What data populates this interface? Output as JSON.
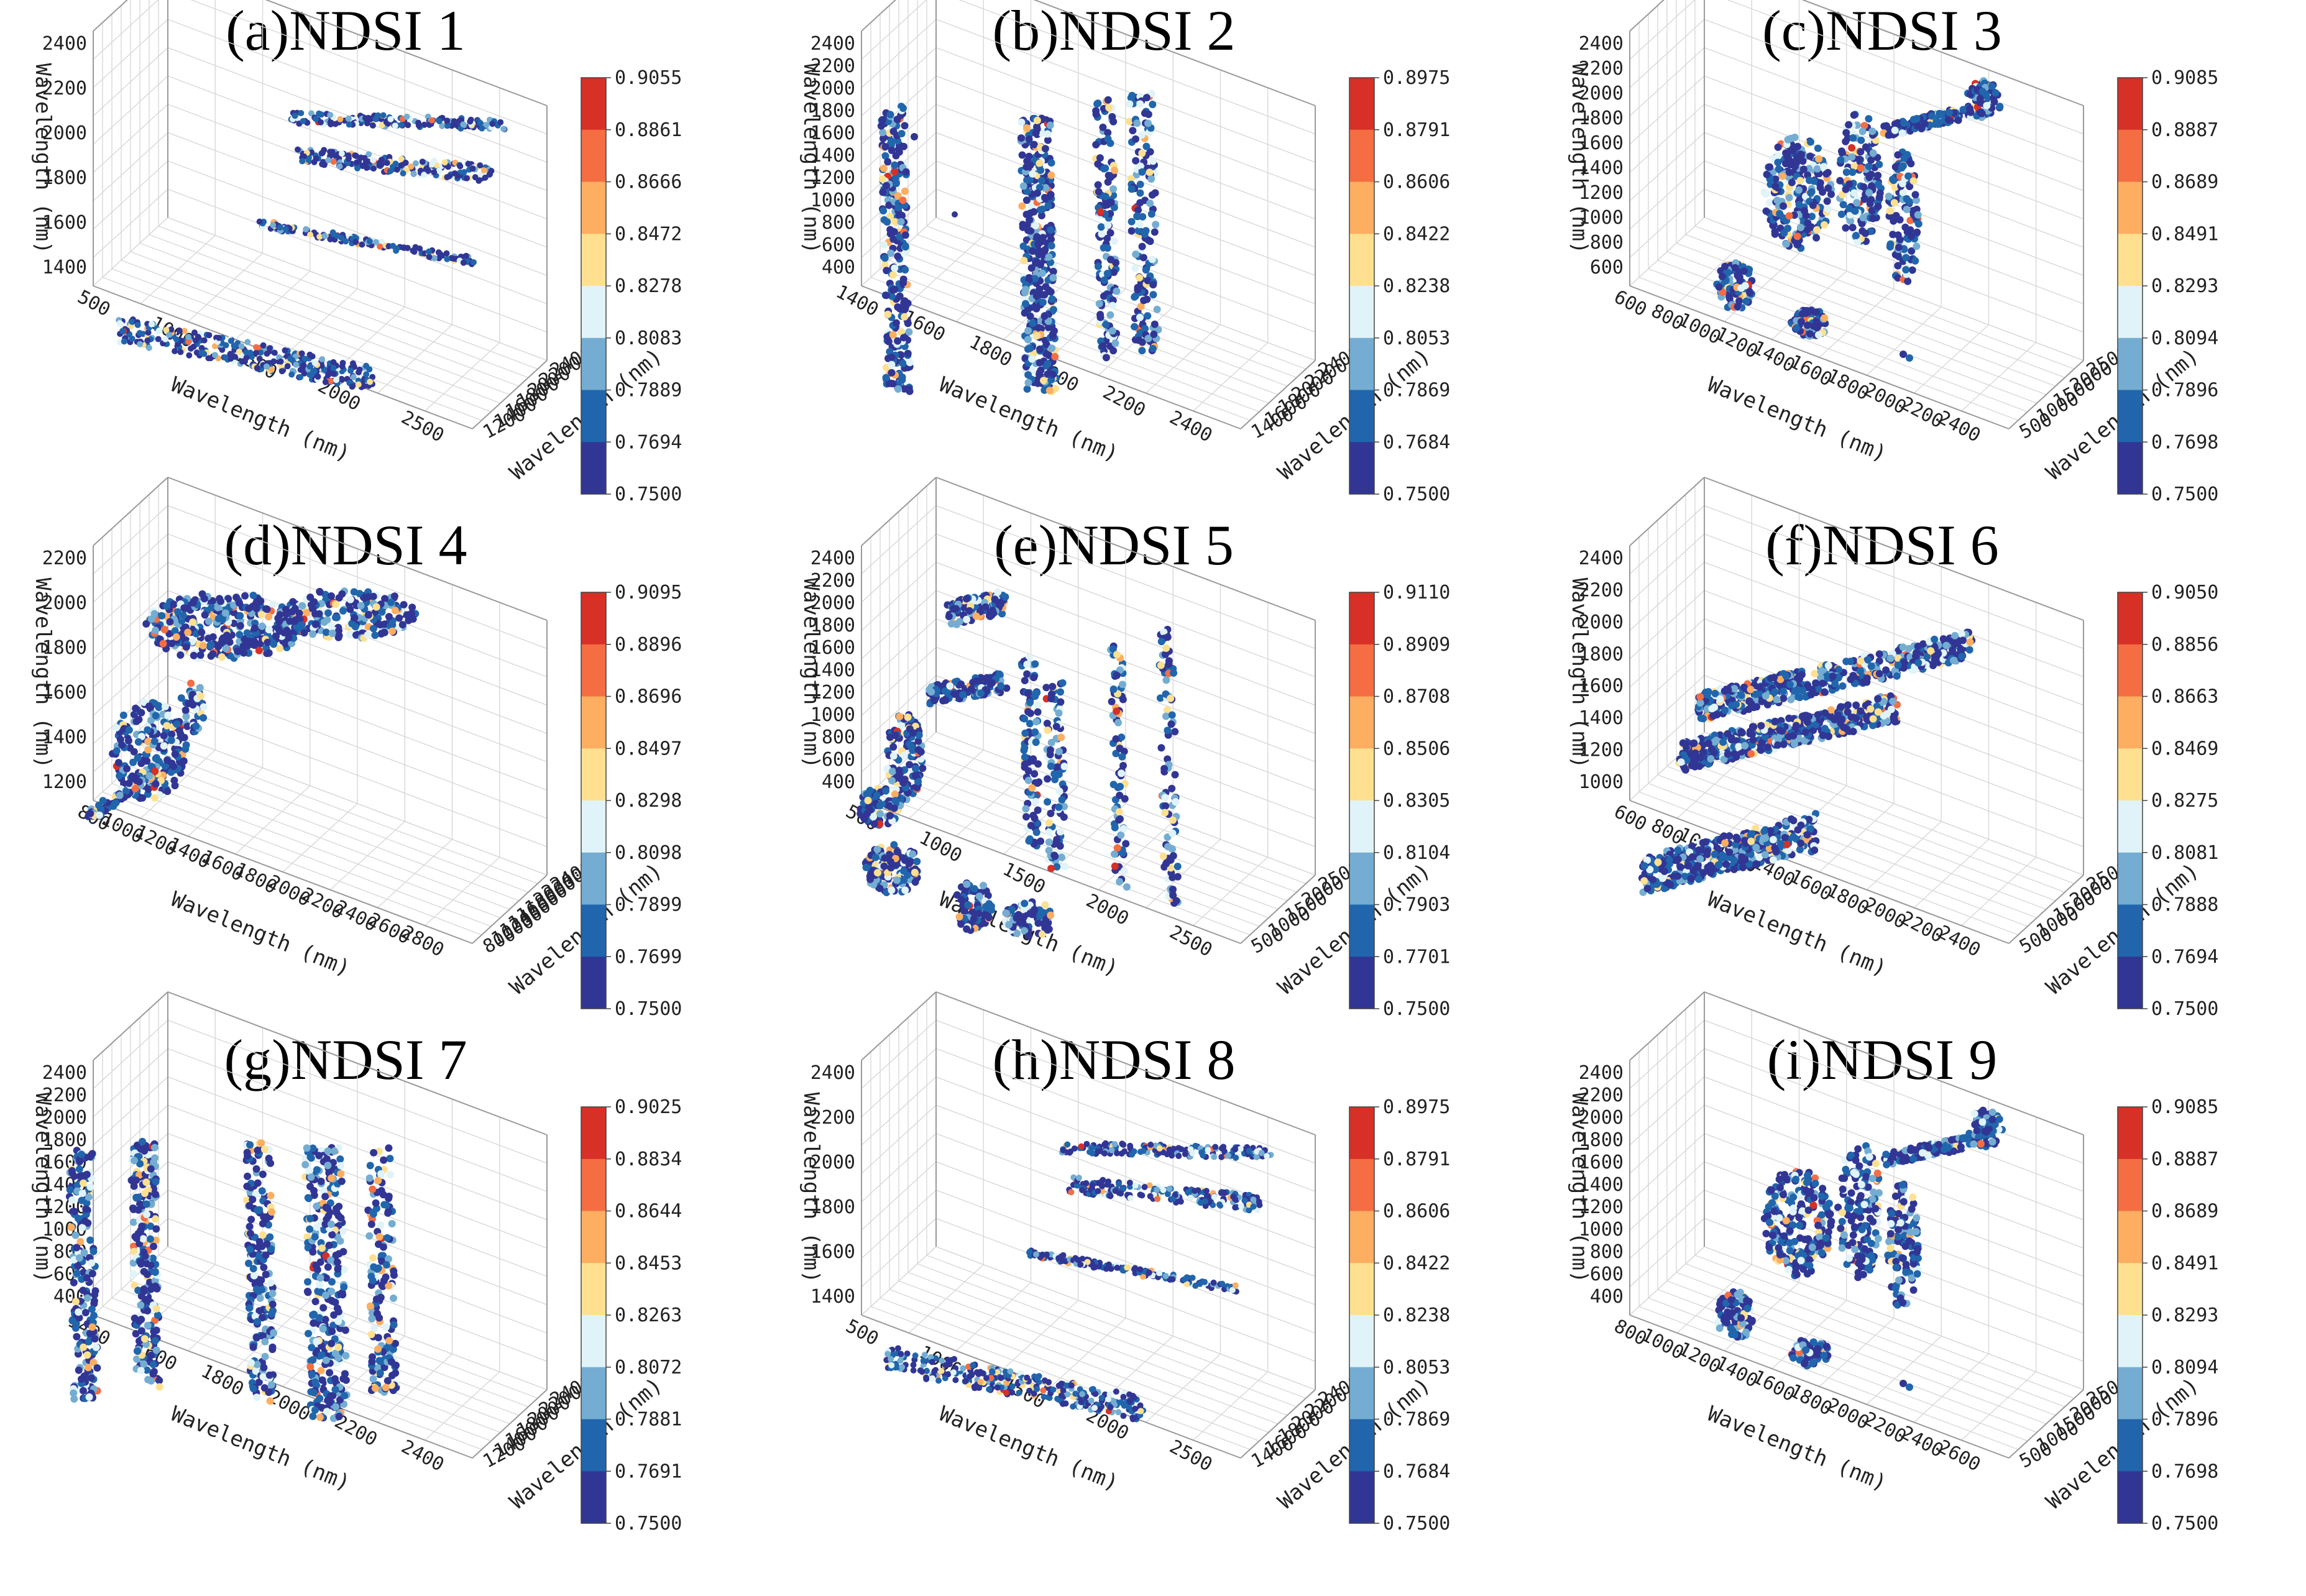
{
  "figure": {
    "colors": [
      "#313695",
      "#2166ac",
      "#74add1",
      "#e0f3f8",
      "#fee090",
      "#fdae61",
      "#f46d43",
      "#d73027",
      "#a50026"
    ]
  },
  "chart_data": [
    {
      "id": "a",
      "type": "scatter",
      "title": "(a)NDSI 1",
      "xlabel": "Wavelength (nm)",
      "ylabel": "Wavelength (nm)",
      "zlabel": "Wavelength (nm)",
      "x_ticks": [
        "500",
        "1000",
        "1500",
        "2000",
        "2500"
      ],
      "y_ticks": [
        "1200",
        "1400",
        "1600",
        "1800",
        "2000",
        "2200",
        "2400"
      ],
      "z_ticks": [
        "1400",
        "1600",
        "1800",
        "2000",
        "2200",
        "2400"
      ],
      "colorbar": [
        "0.9055",
        "0.8861",
        "0.8666",
        "0.8472",
        "0.8278",
        "0.8083",
        "0.7889",
        "0.7694",
        "0.7500"
      ],
      "pattern": "bands-a",
      "layers": [
        [
          2390,
          6
        ],
        [
          2220,
          8
        ],
        [
          1940,
          5
        ],
        [
          1400,
          10
        ]
      ],
      "points": []
    },
    {
      "id": "b",
      "type": "scatter",
      "title": "(b)NDSI 2",
      "xlabel": "Wavelength (nm)",
      "ylabel": "Wavelength (nm)",
      "zlabel": "Wavelength (nm)",
      "x_ticks": [
        "1400",
        "1600",
        "1800",
        "2000",
        "2200",
        "2400"
      ],
      "y_ticks": [
        "1400",
        "1600",
        "1800",
        "2000",
        "2200",
        "2400"
      ],
      "z_ticks": [
        "400",
        "600",
        "800",
        "1000",
        "1200",
        "1400",
        "1600",
        "1800",
        "2000",
        "2200",
        "2400"
      ],
      "colorbar": [
        "0.8975",
        "0.8791",
        "0.8606",
        "0.8422",
        "0.8238",
        "0.8053",
        "0.7869",
        "0.7684",
        "0.7500"
      ],
      "pattern": "columns-b",
      "points": []
    },
    {
      "id": "c",
      "type": "scatter",
      "title": "(c)NDSI 3",
      "xlabel": "Wavelength (nm)",
      "ylabel": "Wavelength (nm)",
      "zlabel": "Wavelength (nm)",
      "x_ticks": [
        "600",
        "800",
        "1000",
        "1200",
        "1400",
        "1600",
        "1800",
        "2000",
        "2200",
        "2400"
      ],
      "y_ticks": [
        "500",
        "1000",
        "1500",
        "2000",
        "2500"
      ],
      "z_ticks": [
        "600",
        "800",
        "1000",
        "1200",
        "1400",
        "1600",
        "1800",
        "2000",
        "2200",
        "2400"
      ],
      "colorbar": [
        "0.9085",
        "0.8887",
        "0.8689",
        "0.8491",
        "0.8293",
        "0.8094",
        "0.7896",
        "0.7698",
        "0.7500"
      ],
      "pattern": "clusters-c",
      "points": []
    },
    {
      "id": "d",
      "type": "scatter",
      "title": "(d)NDSI 4",
      "xlabel": "Wavelength (nm)",
      "ylabel": "Wavelength (nm)",
      "zlabel": "Wavelength (nm)",
      "x_ticks": [
        "800",
        "1000",
        "1200",
        "1400",
        "1600",
        "1800",
        "2000",
        "2200",
        "2400",
        "2600",
        "2800"
      ],
      "y_ticks": [
        "800",
        "1000",
        "1200",
        "1400",
        "1600",
        "1800",
        "2000",
        "2200",
        "2400"
      ],
      "z_ticks": [
        "1200",
        "1400",
        "1600",
        "1800",
        "2000",
        "2200"
      ],
      "colorbar": [
        "0.9095",
        "0.8896",
        "0.8696",
        "0.8497",
        "0.8298",
        "0.8098",
        "0.7899",
        "0.7699",
        "0.7500"
      ],
      "pattern": "diag-d",
      "points": []
    },
    {
      "id": "e",
      "type": "scatter",
      "title": "(e)NDSI 5",
      "xlabel": "Wavelength (nm)",
      "ylabel": "Wavelength (nm)",
      "zlabel": "Wavelength (nm)",
      "x_ticks": [
        "500",
        "1000",
        "1500",
        "2000",
        "2500"
      ],
      "y_ticks": [
        "500",
        "1000",
        "1500",
        "2000",
        "2500"
      ],
      "z_ticks": [
        "400",
        "600",
        "800",
        "1000",
        "1200",
        "1400",
        "1600",
        "1800",
        "2000",
        "2200",
        "2400"
      ],
      "colorbar": [
        "0.9110",
        "0.8909",
        "0.8708",
        "0.8506",
        "0.8305",
        "0.8104",
        "0.7903",
        "0.7701",
        "0.7500"
      ],
      "pattern": "scatter-e",
      "points": []
    },
    {
      "id": "f",
      "type": "scatter",
      "title": "(f)NDSI 6",
      "xlabel": "Wavelength (nm)",
      "ylabel": "Wavelength (nm)",
      "zlabel": "Wavelength (nm)",
      "x_ticks": [
        "600",
        "800",
        "1000",
        "1200",
        "1400",
        "1600",
        "1800",
        "2000",
        "2200",
        "2400"
      ],
      "y_ticks": [
        "500",
        "1000",
        "1500",
        "2000",
        "2500"
      ],
      "z_ticks": [
        "1000",
        "1200",
        "1400",
        "1600",
        "1800",
        "2000",
        "2200",
        "2400"
      ],
      "colorbar": [
        "0.9050",
        "0.8856",
        "0.8663",
        "0.8469",
        "0.8275",
        "0.8081",
        "0.7888",
        "0.7694",
        "0.7500"
      ],
      "pattern": "slabs-f",
      "points": []
    },
    {
      "id": "g",
      "type": "scatter",
      "title": "(g)NDSI 7",
      "xlabel": "Wavelength (nm)",
      "ylabel": "Wavelength (nm)",
      "zlabel": "Wavelength (nm)",
      "x_ticks": [
        "1400",
        "1600",
        "1800",
        "2000",
        "2200",
        "2400"
      ],
      "y_ticks": [
        "1200",
        "1400",
        "1600",
        "1800",
        "2000",
        "2200",
        "2400"
      ],
      "z_ticks": [
        "400",
        "600",
        "800",
        "1000",
        "1200",
        "1400",
        "1600",
        "1800",
        "2000",
        "2200",
        "2400"
      ],
      "colorbar": [
        "0.9025",
        "0.8834",
        "0.8644",
        "0.8453",
        "0.8263",
        "0.8072",
        "0.7881",
        "0.7691",
        "0.7500"
      ],
      "pattern": "columns-g",
      "points": []
    },
    {
      "id": "h",
      "type": "scatter",
      "title": "(h)NDSI 8",
      "xlabel": "Wavelength (nm)",
      "ylabel": "Wavelength (nm)",
      "zlabel": "Wavelength (nm)",
      "x_ticks": [
        "500",
        "1000",
        "1500",
        "2000",
        "2500"
      ],
      "y_ticks": [
        "1400",
        "1600",
        "1800",
        "2000",
        "2200",
        "2400"
      ],
      "z_ticks": [
        "1400",
        "1600",
        "1800",
        "2000",
        "2200",
        "2400"
      ],
      "colorbar": [
        "0.8975",
        "0.8791",
        "0.8606",
        "0.8422",
        "0.8238",
        "0.8053",
        "0.7869",
        "0.7684",
        "0.7500"
      ],
      "pattern": "bands-h",
      "points": []
    },
    {
      "id": "i",
      "type": "scatter",
      "title": "(i)NDSI 9",
      "xlabel": "Wavelength (nm)",
      "ylabel": "Wavelength (nm)",
      "zlabel": "Wavelength (nm)",
      "x_ticks": [
        "800",
        "1000",
        "1200",
        "1400",
        "1600",
        "1800",
        "2000",
        "2200",
        "2400",
        "2600"
      ],
      "y_ticks": [
        "500",
        "1000",
        "1500",
        "2000",
        "2500"
      ],
      "z_ticks": [
        "400",
        "600",
        "800",
        "1000",
        "1200",
        "1400",
        "1600",
        "1800",
        "2000",
        "2200",
        "2400"
      ],
      "colorbar": [
        "0.9085",
        "0.8887",
        "0.8689",
        "0.8491",
        "0.8293",
        "0.8094",
        "0.7896",
        "0.7698",
        "0.7500"
      ],
      "pattern": "clusters-i",
      "points": []
    }
  ]
}
